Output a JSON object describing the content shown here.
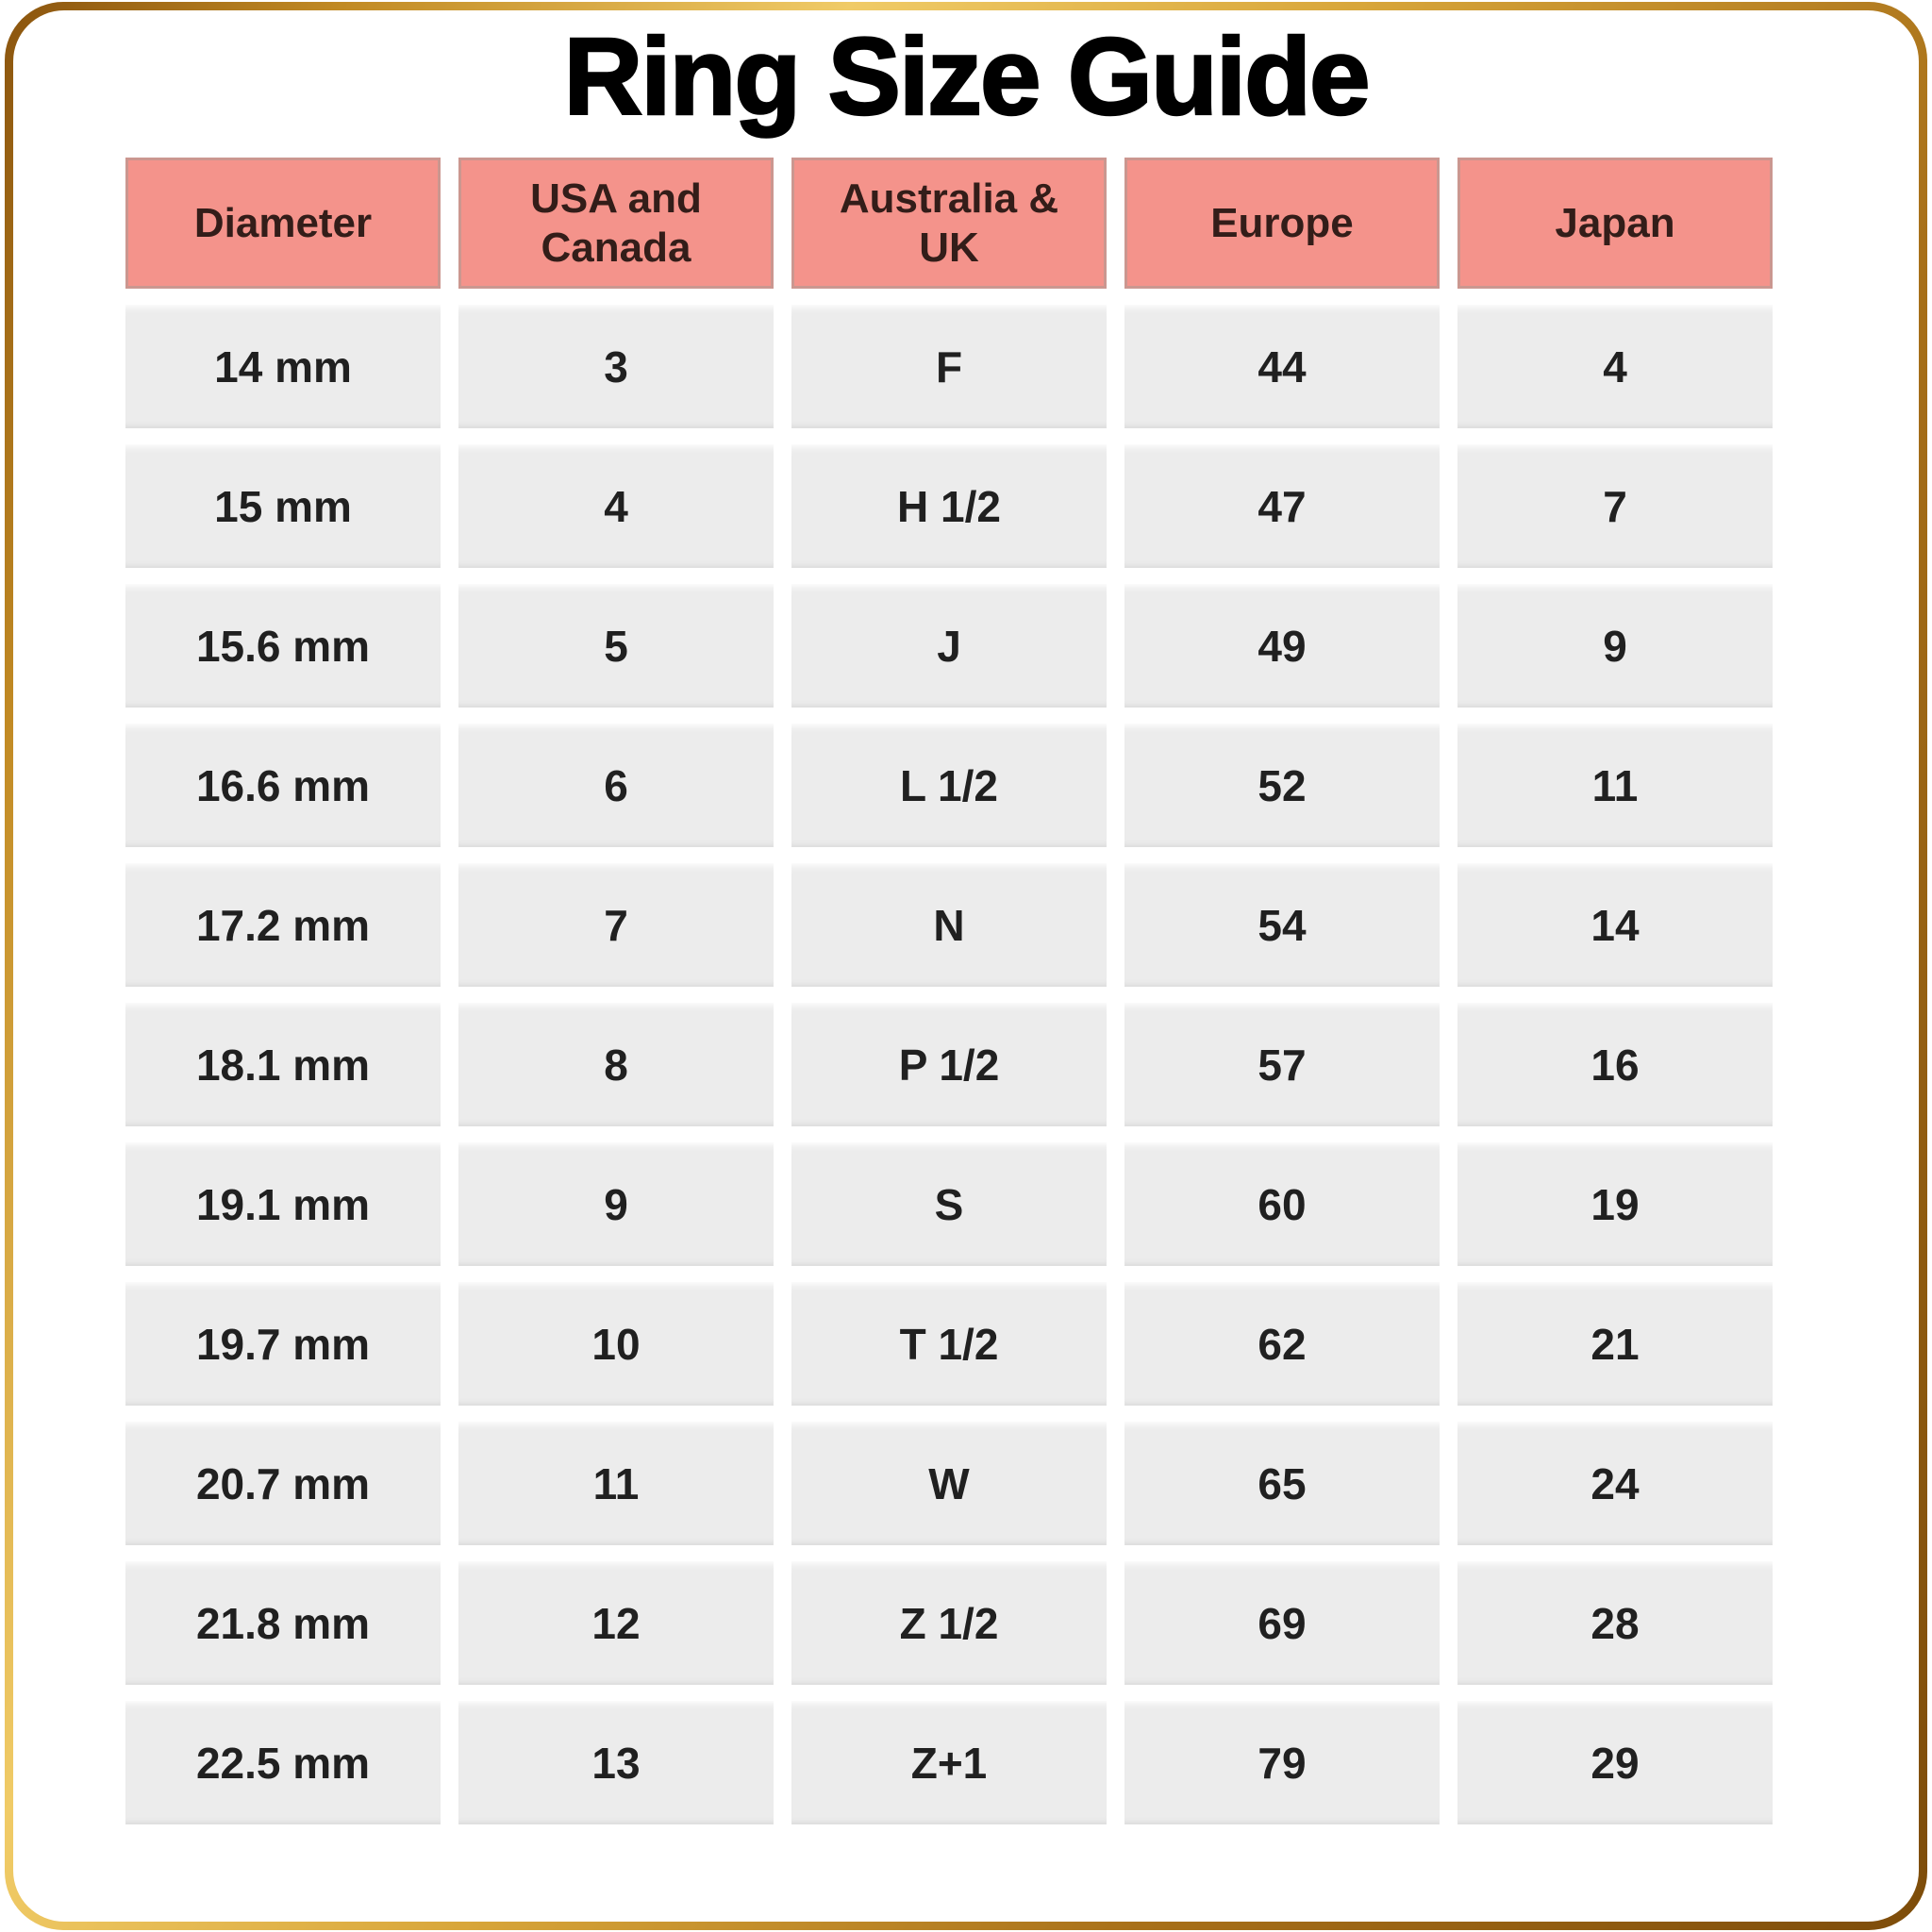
{
  "page": {
    "title": "Ring Size Guide"
  },
  "table": {
    "headers": [
      "Diameter",
      "USA and Canada",
      "Australia & UK",
      "Europe",
      "Japan"
    ],
    "rows": [
      [
        "14 mm",
        "3",
        "F",
        "44",
        "4"
      ],
      [
        "15 mm",
        "4",
        "H 1/2",
        "47",
        "7"
      ],
      [
        "15.6 mm",
        "5",
        "J",
        "49",
        "9"
      ],
      [
        "16.6 mm",
        "6",
        "L 1/2",
        "52",
        "11"
      ],
      [
        "17.2 mm",
        "7",
        "N",
        "54",
        "14"
      ],
      [
        "18.1 mm",
        "8",
        "P 1/2",
        "57",
        "16"
      ],
      [
        "19.1 mm",
        "9",
        "S",
        "60",
        "19"
      ],
      [
        "19.7 mm",
        "10",
        "T 1/2",
        "62",
        "21"
      ],
      [
        "20.7 mm",
        "11",
        "W",
        "65",
        "24"
      ],
      [
        "21.8 mm",
        "12",
        "Z 1/2",
        "69",
        "28"
      ],
      [
        "22.5 mm",
        "13",
        "Z+1",
        "79",
        "29"
      ]
    ]
  },
  "colors": {
    "header_bg": "#F4938B",
    "header_border": "#CB9790",
    "header_text": "#331D19",
    "cell_bg": "#ECECEC",
    "cell_text": "#202020",
    "title_text": "#000000",
    "frame_gold_dark": "#8A540E",
    "frame_gold_light": "#F0CB67"
  }
}
